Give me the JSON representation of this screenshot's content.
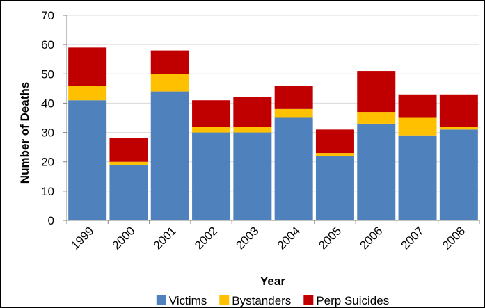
{
  "chart_data": {
    "type": "bar",
    "stacked": true,
    "categories": [
      "1999",
      "2000",
      "2001",
      "2002",
      "2003",
      "2004",
      "2005",
      "2006",
      "2007",
      "2008"
    ],
    "series": [
      {
        "name": "Victims",
        "color": "#4f81bd",
        "values": [
          41,
          19,
          44,
          30,
          30,
          35,
          22,
          33,
          29,
          31
        ]
      },
      {
        "name": "Bystanders",
        "color": "#ffc000",
        "values": [
          5,
          1,
          6,
          2,
          2,
          3,
          1,
          4,
          6,
          1
        ]
      },
      {
        "name": "Perp Suicides",
        "color": "#c00000",
        "values": [
          13,
          8,
          8,
          9,
          10,
          8,
          8,
          14,
          8,
          11
        ]
      }
    ],
    "xlabel": "Year",
    "ylabel": "Number of Deaths",
    "ylim": [
      0,
      70
    ],
    "yticks": [
      0,
      10,
      20,
      30,
      40,
      50,
      60,
      70
    ],
    "grid": true,
    "legend_position": "bottom"
  }
}
